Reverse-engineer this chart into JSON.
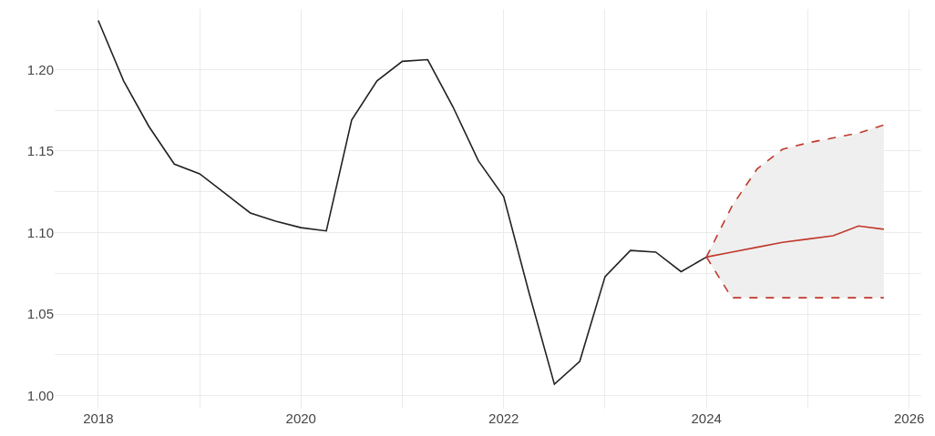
{
  "chart_data": {
    "type": "line",
    "xlim": [
      2017.57,
      2026.12
    ],
    "ylim": [
      0.992,
      1.237
    ],
    "xticks": [
      2018,
      2020,
      2022,
      2024,
      2026
    ],
    "yticks": [
      {
        "value": 1.0,
        "label": "1.00"
      },
      {
        "value": 1.05,
        "label": "1.05"
      },
      {
        "value": 1.1,
        "label": "1.10"
      },
      {
        "value": 1.15,
        "label": "1.15"
      },
      {
        "value": 1.2,
        "label": "1.20"
      }
    ],
    "grid": true,
    "series": [
      {
        "color": "#222222",
        "line_style": "solid",
        "x": [
          2018.0,
          2018.25,
          2018.5,
          2018.75,
          2019.0,
          2019.25,
          2019.5,
          2019.75,
          2020.0,
          2020.25,
          2020.5,
          2020.75,
          2021.0,
          2021.25,
          2021.5,
          2021.75,
          2022.0,
          2022.25,
          2022.5,
          2022.75,
          2023.0,
          2023.25,
          2023.5,
          2023.75,
          2024.0
        ],
        "values": [
          1.23,
          1.193,
          1.165,
          1.142,
          1.136,
          1.124,
          1.112,
          1.107,
          1.103,
          1.101,
          1.169,
          1.193,
          1.205,
          1.206,
          1.177,
          1.144,
          1.122,
          1.063,
          1.007,
          1.021,
          1.073,
          1.089,
          1.088,
          1.076,
          1.085
        ]
      },
      {
        "color": "#c0392b",
        "line_style": "solid",
        "x": [
          2024.0,
          2024.25,
          2024.5,
          2024.75,
          2025.0,
          2025.25,
          2025.5,
          2025.75
        ],
        "values": [
          1.085,
          1.088,
          1.091,
          1.094,
          1.096,
          1.098,
          1.104,
          1.102
        ],
        "lower": [
          1.085,
          1.06,
          1.06,
          1.06,
          1.06,
          1.06,
          1.06,
          1.06
        ],
        "upper": [
          1.085,
          1.116,
          1.139,
          1.151,
          1.155,
          1.158,
          1.161,
          1.166
        ]
      },
      {
        "color": "#c0392b",
        "line_style": "dashed",
        "x": [
          2024.0,
          2024.25,
          2024.5,
          2024.75,
          2025.0,
          2025.25,
          2025.5,
          2025.75
        ],
        "values": [
          1.085,
          1.06,
          1.06,
          1.06,
          1.06,
          1.06,
          1.06,
          1.06
        ]
      },
      {
        "color": "#c0392b",
        "line_style": "dashed",
        "x": [
          2024.0,
          2024.25,
          2024.5,
          2024.75,
          2025.0,
          2025.25,
          2025.5,
          2025.75
        ],
        "values": [
          1.085,
          1.116,
          1.139,
          1.151,
          1.155,
          1.158,
          1.161,
          1.166
        ]
      }
    ]
  }
}
